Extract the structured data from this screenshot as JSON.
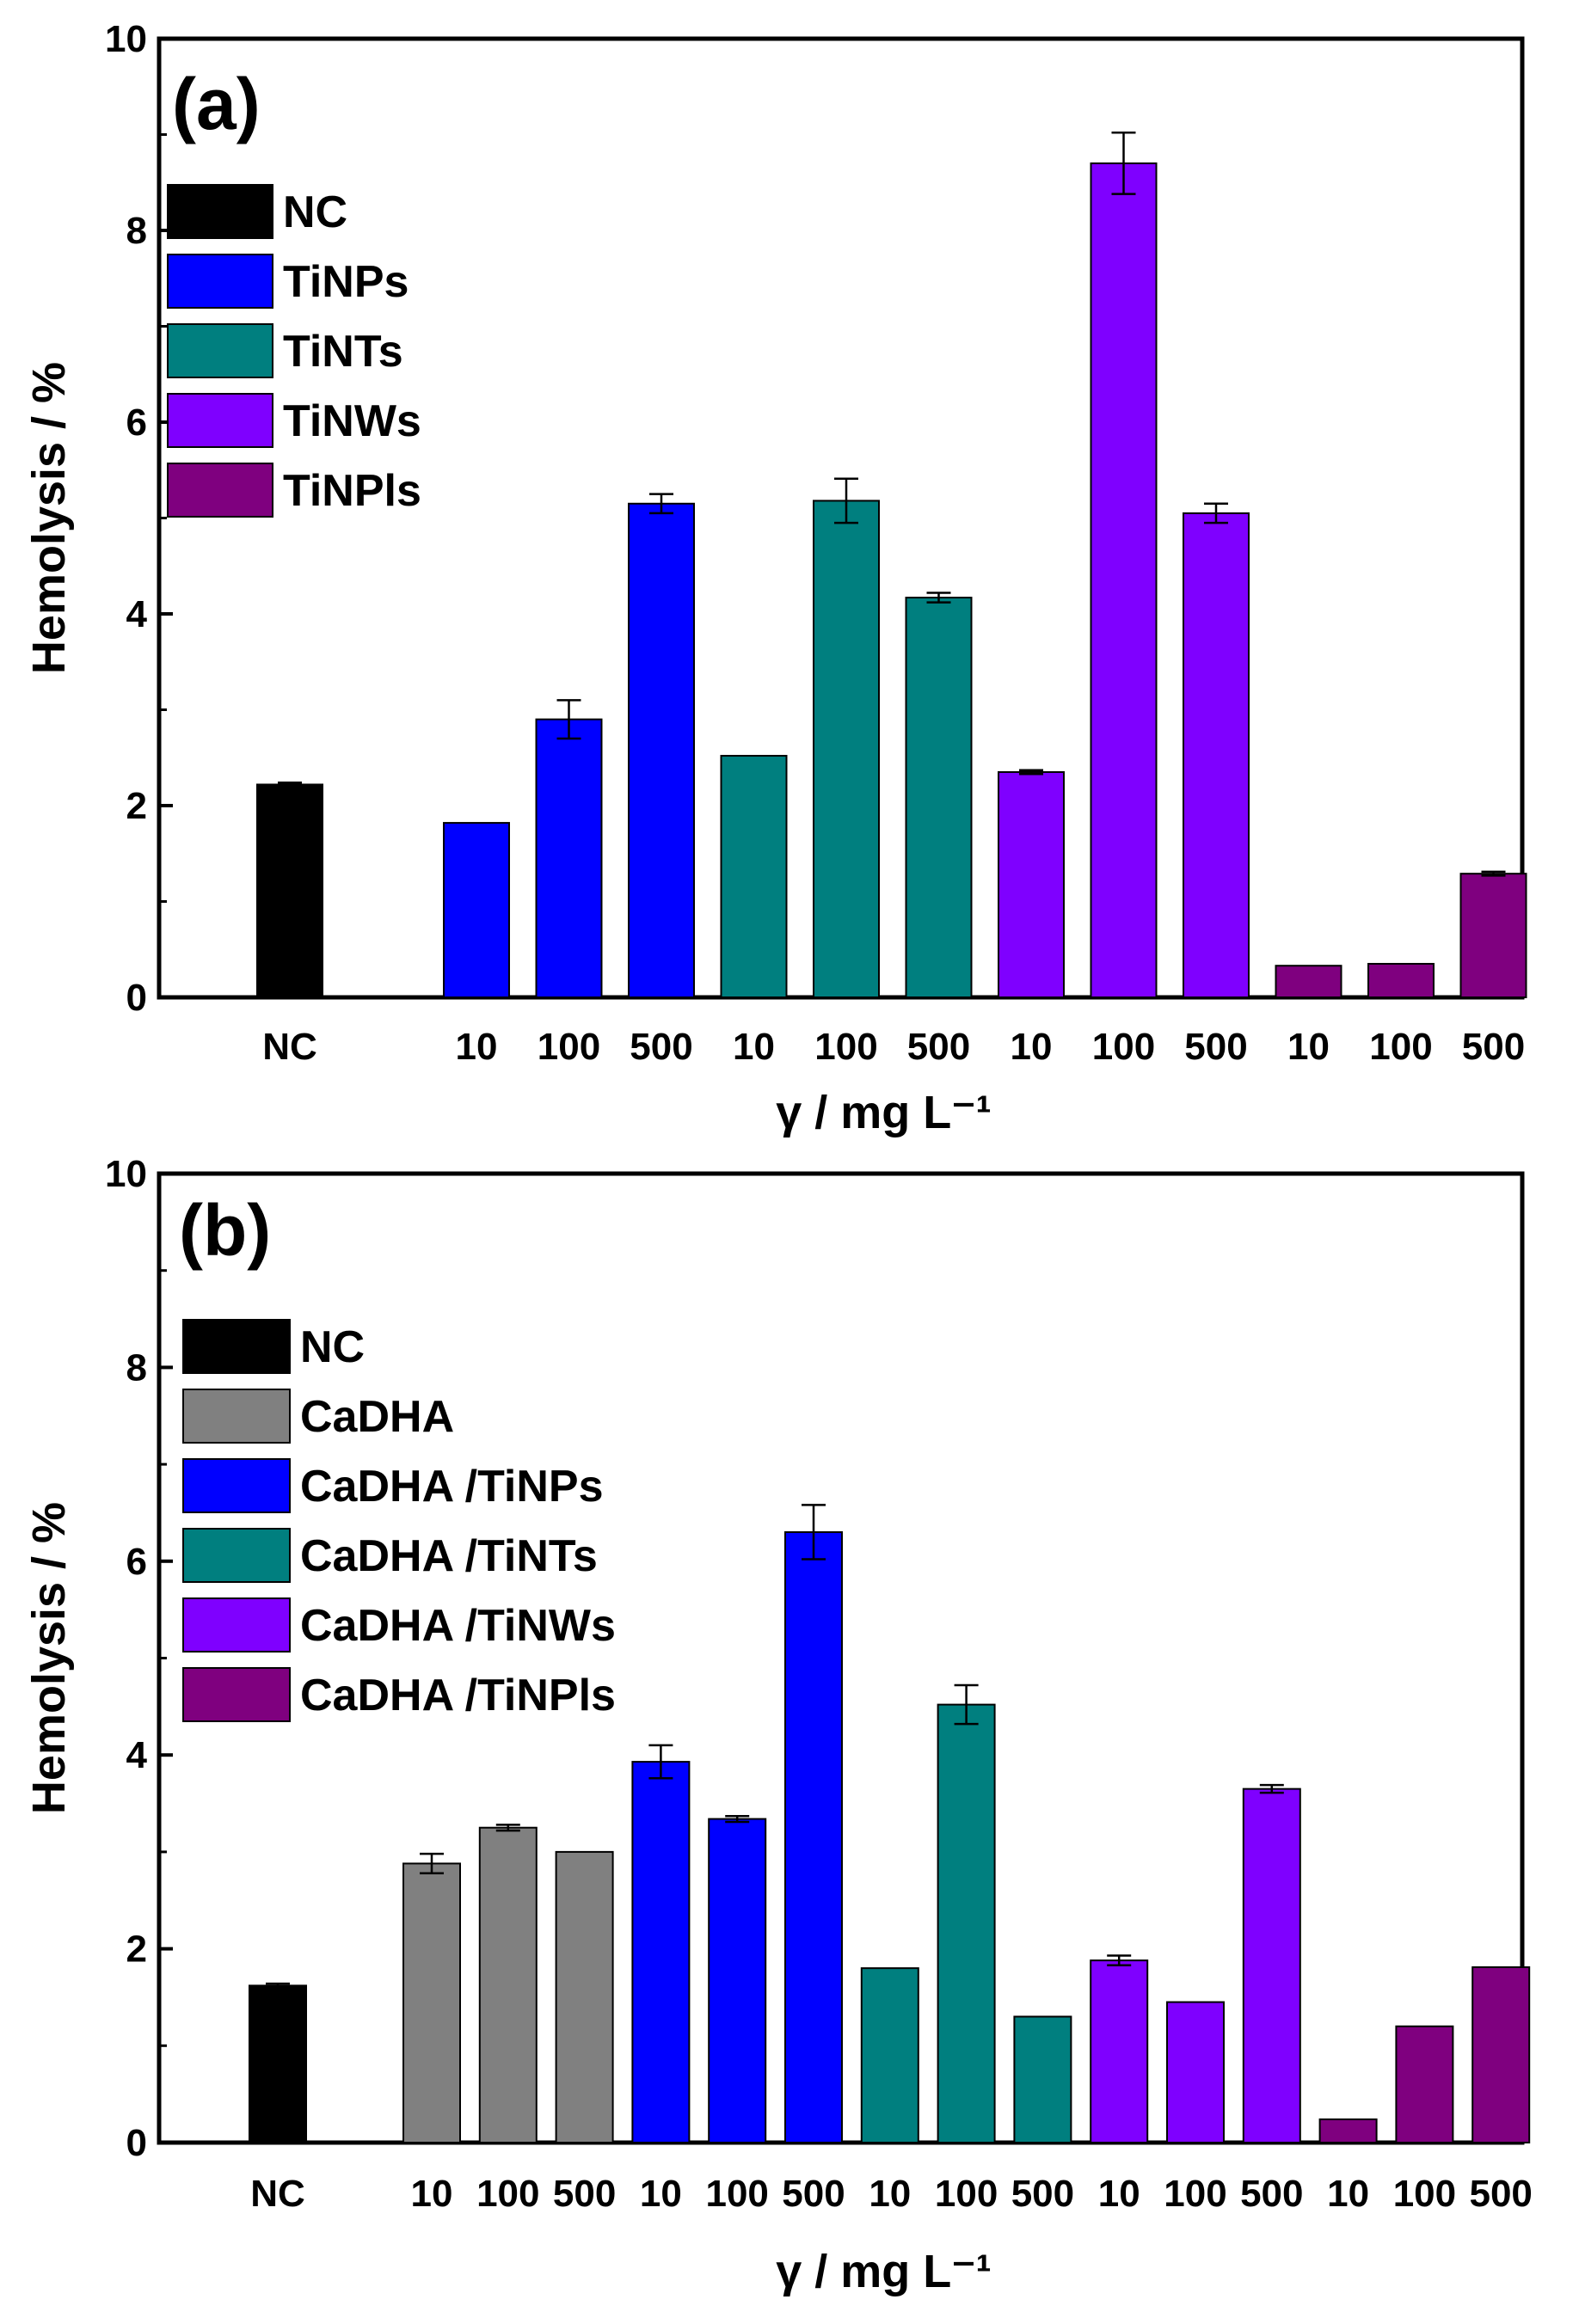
{
  "chart_data": [
    {
      "type": "bar",
      "panel_label": "(a)",
      "ylabel": "Hemolysis / %",
      "xlabel": "γ / mg L⁻¹",
      "ylim": [
        0,
        10
      ],
      "yticks": [
        "0",
        "2",
        "4",
        "6",
        "8",
        "10"
      ],
      "legend": [
        {
          "name": "NC",
          "color": "#000000"
        },
        {
          "name": "TiNPs",
          "color": "#0000FF"
        },
        {
          "name": "TiNTs",
          "color": "#007F7F"
        },
        {
          "name": "TiNWs",
          "color": "#7F00FF"
        },
        {
          "name": "TiNPls",
          "color": "#7F007F"
        }
      ],
      "bars": [
        {
          "group": "NC",
          "category": "NC",
          "value": 2.22,
          "error": 0.02
        },
        {
          "group": "TiNPs",
          "category": "10",
          "value": 1.82,
          "error": 0.0
        },
        {
          "group": "TiNPs",
          "category": "100",
          "value": 2.9,
          "error": 0.2
        },
        {
          "group": "TiNPs",
          "category": "500",
          "value": 5.15,
          "error": 0.1
        },
        {
          "group": "TiNTs",
          "category": "10",
          "value": 2.52,
          "error": 0.0
        },
        {
          "group": "TiNTs",
          "category": "100",
          "value": 5.18,
          "error": 0.23
        },
        {
          "group": "TiNTs",
          "category": "500",
          "value": 4.17,
          "error": 0.05
        },
        {
          "group": "TiNWs",
          "category": "10",
          "value": 2.35,
          "error": 0.02
        },
        {
          "group": "TiNWs",
          "category": "100",
          "value": 8.7,
          "error": 0.32
        },
        {
          "group": "TiNWs",
          "category": "500",
          "value": 5.05,
          "error": 0.1
        },
        {
          "group": "TiNPls",
          "category": "10",
          "value": 0.33,
          "error": 0.0
        },
        {
          "group": "TiNPls",
          "category": "100",
          "value": 0.35,
          "error": 0.0
        },
        {
          "group": "TiNPls",
          "category": "500",
          "value": 1.29,
          "error": 0.02
        }
      ]
    },
    {
      "type": "bar",
      "panel_label": "(b)",
      "ylabel": "Hemolysis / %",
      "xlabel": "γ / mg L⁻¹",
      "ylim": [
        0,
        10
      ],
      "yticks": [
        "0",
        "2",
        "4",
        "6",
        "8",
        "10"
      ],
      "legend": [
        {
          "name": "NC",
          "color": "#000000"
        },
        {
          "name": "CaDHA",
          "color": "#808080"
        },
        {
          "name": "CaDHA /TiNPs",
          "color": "#0000FF"
        },
        {
          "name": "CaDHA /TiNTs",
          "color": "#007F7F"
        },
        {
          "name": "CaDHA /TiNWs",
          "color": "#7F00FF"
        },
        {
          "name": "CaDHA /TiNPls",
          "color": "#7F007F"
        }
      ],
      "bars": [
        {
          "group": "NC",
          "category": "NC",
          "value": 1.62,
          "error": 0.02
        },
        {
          "group": "CaDHA",
          "category": "10",
          "value": 2.88,
          "error": 0.1
        },
        {
          "group": "CaDHA",
          "category": "100",
          "value": 3.25,
          "error": 0.03
        },
        {
          "group": "CaDHA",
          "category": "500",
          "value": 3.0,
          "error": 0.0
        },
        {
          "group": "CaDHA /TiNPs",
          "category": "10",
          "value": 3.93,
          "error": 0.17
        },
        {
          "group": "CaDHA /TiNPs",
          "category": "100",
          "value": 3.34,
          "error": 0.03
        },
        {
          "group": "CaDHA /TiNPs",
          "category": "500",
          "value": 6.3,
          "error": 0.28
        },
        {
          "group": "CaDHA /TiNTs",
          "category": "10",
          "value": 1.8,
          "error": 0.0
        },
        {
          "group": "CaDHA /TiNTs",
          "category": "100",
          "value": 4.52,
          "error": 0.2
        },
        {
          "group": "CaDHA /TiNTs",
          "category": "500",
          "value": 1.3,
          "error": 0.0
        },
        {
          "group": "CaDHA /TiNWs",
          "category": "10",
          "value": 1.88,
          "error": 0.05
        },
        {
          "group": "CaDHA /TiNWs",
          "category": "100",
          "value": 1.45,
          "error": 0.0
        },
        {
          "group": "CaDHA /TiNWs",
          "category": "500",
          "value": 3.65,
          "error": 0.04
        },
        {
          "group": "CaDHA /TiNPls",
          "category": "10",
          "value": 0.24,
          "error": 0.0
        },
        {
          "group": "CaDHA /TiNPls",
          "category": "100",
          "value": 1.2,
          "error": 0.0
        },
        {
          "group": "CaDHA /TiNPls",
          "category": "500",
          "value": 1.81,
          "error": 0.0
        }
      ]
    }
  ]
}
